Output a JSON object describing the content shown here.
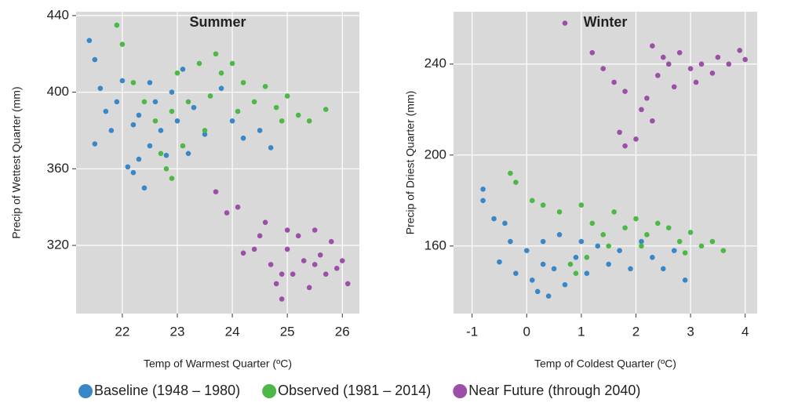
{
  "chart_data": [
    {
      "type": "scatter",
      "title": "Summer",
      "x_label": "Temp of Warmest Quarter (ºC)",
      "y_label": "Precip of Wettest Quarter (mm)",
      "xlim": [
        21.16,
        26.31
      ],
      "ylim": [
        284.4,
        442
      ],
      "xticks": [
        22,
        23,
        24,
        25,
        26
      ],
      "yticks": [
        320,
        360,
        400,
        440
      ],
      "grid": true,
      "series": [
        {
          "name": "Baseline (1948 – 1980)",
          "color": "#3a87c8",
          "x": [
            21.4,
            21.5,
            21.6,
            21.7,
            21.5,
            21.8,
            21.9,
            22.0,
            22.1,
            22.2,
            22.3,
            22.4,
            22.5,
            22.3,
            22.6,
            22.7,
            22.8,
            22.9,
            23.0,
            23.1,
            23.3,
            23.5,
            23.8,
            24.0,
            24.2,
            24.5,
            24.7,
            22.2,
            22.5,
            23.2
          ],
          "values": [
            427,
            417,
            402,
            390,
            373,
            380,
            395,
            406,
            361,
            358,
            365,
            350,
            372,
            388,
            395,
            380,
            367,
            400,
            385,
            412,
            392,
            378,
            402,
            385,
            376,
            380,
            371,
            383,
            405,
            368
          ]
        },
        {
          "name": "Observed (1981 – 2014)",
          "color": "#4db848",
          "x": [
            21.9,
            22.0,
            22.2,
            22.4,
            22.6,
            22.7,
            22.8,
            22.9,
            23.0,
            23.2,
            23.4,
            23.6,
            23.8,
            24.0,
            24.2,
            24.4,
            24.6,
            24.8,
            25.0,
            25.2,
            25.4,
            25.7,
            23.5,
            24.1,
            23.1,
            24.9,
            22.9,
            23.7
          ],
          "values": [
            435,
            425,
            405,
            395,
            385,
            368,
            360,
            355,
            410,
            395,
            415,
            398,
            410,
            415,
            405,
            395,
            403,
            392,
            398,
            388,
            385,
            391,
            380,
            390,
            372,
            385,
            390,
            420
          ]
        },
        {
          "name": "Near Future (through 2040)",
          "color": "#9b4fa6",
          "x": [
            23.7,
            23.9,
            24.1,
            24.2,
            24.4,
            24.5,
            24.6,
            24.7,
            24.8,
            24.9,
            25.0,
            25.1,
            25.2,
            25.3,
            25.4,
            25.5,
            25.6,
            25.7,
            25.8,
            25.9,
            26.0,
            26.1,
            25.0,
            25.5,
            24.9
          ],
          "values": [
            348,
            337,
            340,
            316,
            318,
            325,
            332,
            310,
            300,
            292,
            318,
            305,
            325,
            312,
            298,
            328,
            315,
            305,
            322,
            308,
            312,
            300,
            328,
            310,
            305
          ]
        }
      ]
    },
    {
      "type": "scatter",
      "title": "Winter",
      "x_label": "Temp of Coldest Quarter (ºC)",
      "y_label": "Precip of Driest Quarter (mm)",
      "xlim": [
        -1.34,
        4.22
      ],
      "ylim": [
        130.3,
        263
      ],
      "xticks": [
        -1,
        0,
        1,
        2,
        3,
        4
      ],
      "yticks": [
        160,
        200,
        240
      ],
      "grid": true,
      "series": [
        {
          "color": "#3a87c8",
          "x": [
            -0.8,
            -0.8,
            -0.6,
            -0.4,
            -0.3,
            -0.5,
            -0.2,
            0.0,
            0.1,
            0.2,
            0.3,
            0.4,
            0.5,
            0.6,
            0.7,
            0.9,
            1.1,
            1.3,
            1.5,
            1.7,
            1.9,
            2.1,
            2.3,
            2.5,
            2.7,
            2.9,
            0.3,
            1.0
          ],
          "values": [
            185,
            180,
            172,
            170,
            162,
            153,
            148,
            158,
            145,
            140,
            162,
            138,
            150,
            165,
            143,
            155,
            148,
            160,
            152,
            158,
            150,
            162,
            155,
            150,
            158,
            145,
            152,
            162
          ]
        },
        {
          "color": "#4db848",
          "x": [
            -0.3,
            -0.2,
            0.1,
            0.3,
            0.6,
            0.8,
            0.9,
            1.0,
            1.2,
            1.4,
            1.6,
            1.8,
            2.0,
            2.2,
            2.4,
            2.6,
            2.8,
            3.0,
            3.2,
            3.4,
            3.6,
            1.1,
            1.5,
            2.1,
            2.9
          ],
          "values": [
            192,
            188,
            180,
            178,
            175,
            152,
            148,
            178,
            170,
            165,
            175,
            168,
            172,
            165,
            170,
            168,
            162,
            166,
            160,
            162,
            158,
            155,
            160,
            160,
            157
          ]
        },
        {
          "color": "#9b4fa6",
          "x": [
            0.7,
            1.2,
            1.4,
            1.6,
            1.8,
            1.7,
            1.8,
            2.0,
            2.1,
            2.2,
            2.3,
            2.4,
            2.5,
            2.6,
            2.7,
            2.8,
            3.0,
            3.1,
            3.2,
            3.4,
            3.5,
            3.7,
            3.9,
            4.0,
            2.3
          ],
          "values": [
            258,
            245,
            238,
            232,
            228,
            210,
            204,
            207,
            220,
            225,
            215,
            235,
            243,
            240,
            230,
            245,
            238,
            232,
            240,
            236,
            243,
            240,
            246,
            242,
            248
          ]
        }
      ]
    }
  ]
}
